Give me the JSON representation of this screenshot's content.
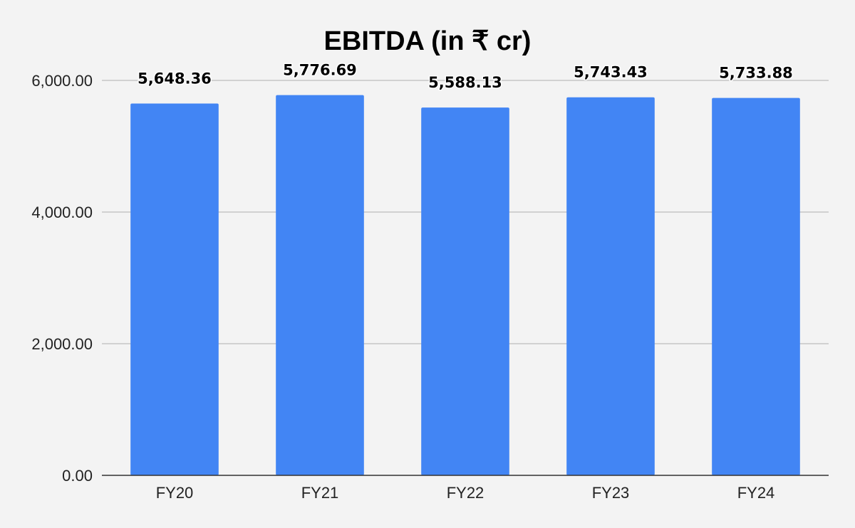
{
  "chart_data": {
    "type": "bar",
    "title": "EBITDA (in ₹ cr)",
    "xlabel": "",
    "ylabel": "",
    "categories": [
      "FY20",
      "FY21",
      "FY22",
      "FY23",
      "FY24"
    ],
    "values": [
      5648.36,
      5776.69,
      5588.13,
      5743.43,
      5733.88
    ],
    "data_labels": [
      "5,648.36",
      "5,776.69",
      "5,588.13",
      "5,743.43",
      "5,733.88"
    ],
    "y_ticks": [
      0,
      2000,
      4000,
      6000
    ],
    "y_tick_labels": [
      "0.00",
      "2,000.00",
      "4,000.00",
      "6,000.00"
    ],
    "ylim": [
      0,
      6000
    ],
    "grid": true,
    "legend": "none",
    "colors": {
      "bar": "#4285f4",
      "background": "#f3f3f3",
      "grid": "#bdbdbd",
      "axis": "#333333"
    }
  }
}
